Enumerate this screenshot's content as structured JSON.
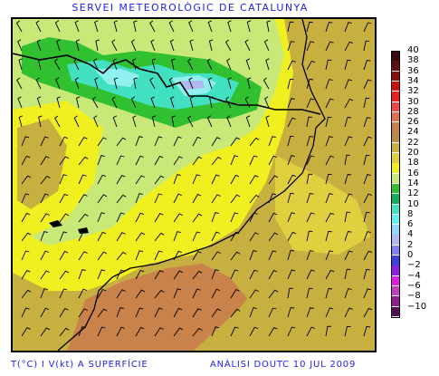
{
  "header": {
    "title": "SERVEI METEOROLÒGIC DE CATALUNYA"
  },
  "footer": {
    "left": "T(°C) I V(kt) A SUPERFÍCIE",
    "right": "ANÀLISI DOUTC 10 JUL 2009"
  },
  "legend": {
    "items": [
      {
        "label": "40",
        "color": "#3a0d0d"
      },
      {
        "label": "38",
        "color": "#5c1010"
      },
      {
        "label": "36",
        "color": "#8a1010"
      },
      {
        "label": "34",
        "color": "#c81010"
      },
      {
        "label": "32",
        "color": "#e82020"
      },
      {
        "label": "30",
        "color": "#f04848"
      },
      {
        "label": "28",
        "color": "#e07050"
      },
      {
        "label": "26",
        "color": "#c8824a"
      },
      {
        "label": "24",
        "color": "#b88c48"
      },
      {
        "label": "22",
        "color": "#c8b040"
      },
      {
        "label": "20",
        "color": "#e0d040"
      },
      {
        "label": "18",
        "color": "#f0f020"
      },
      {
        "label": "16",
        "color": "#c8e878"
      },
      {
        "label": "14",
        "color": "#30c030"
      },
      {
        "label": "12",
        "color": "#10b060"
      },
      {
        "label": "10",
        "color": "#40e0c0"
      },
      {
        "label": "8",
        "color": "#60f0f0"
      },
      {
        "label": "6",
        "color": "#90d8f8"
      },
      {
        "label": "4",
        "color": "#b0b8f0"
      },
      {
        "label": "2",
        "color": "#8080f0"
      },
      {
        "label": "0",
        "color": "#4040e0"
      },
      {
        "label": "−2",
        "color": "#9020e0"
      },
      {
        "label": "−4",
        "color": "#e020e0"
      },
      {
        "label": "−6",
        "color": "#c040c0"
      },
      {
        "label": "−8",
        "color": "#902090"
      },
      {
        "label": "−10",
        "color": "#501050"
      }
    ]
  }
}
